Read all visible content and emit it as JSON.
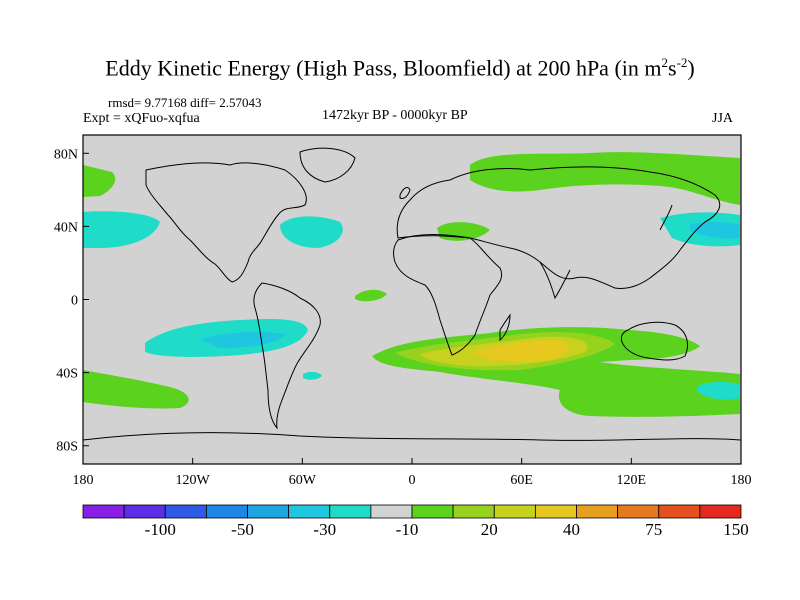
{
  "title": {
    "main": "Eddy Kinetic Energy (High Pass, Bloomfield) at 200 hPa (in m",
    "sup1": "2",
    "mid": "s",
    "sup2": "-2",
    "close": ")"
  },
  "stats": {
    "rmsd_diff": "rmsd= 9.77168 diff= 2.57043",
    "experiment": "Expt = xQFuo-xqfua",
    "period": "1472kyr BP - 0000kyr BP",
    "season": "JJA"
  },
  "axes": {
    "lat_ticks": [
      {
        "value": 80,
        "label": "80N"
      },
      {
        "value": 40,
        "label": "40N"
      },
      {
        "value": 0,
        "label": "0"
      },
      {
        "value": -40,
        "label": "40S"
      },
      {
        "value": -80,
        "label": "80S"
      }
    ],
    "lon_ticks": [
      {
        "value": -180,
        "label": "180"
      },
      {
        "value": -120,
        "label": "120W"
      },
      {
        "value": -60,
        "label": "60W"
      },
      {
        "value": 0,
        "label": "0"
      },
      {
        "value": 60,
        "label": "60E"
      },
      {
        "value": 120,
        "label": "120E"
      },
      {
        "value": 180,
        "label": "180"
      }
    ],
    "lon_range": [
      -180,
      180
    ],
    "lat_range": [
      -90,
      90
    ]
  },
  "colorbar": {
    "colors": [
      "#8a1ee6",
      "#5a2ee6",
      "#2e5ae6",
      "#1e86e6",
      "#1ea6e0",
      "#1ec6e0",
      "#1edcc8",
      "#d2d2d2",
      "#5ad21e",
      "#96d21e",
      "#c8d21e",
      "#e6c81e",
      "#e6a01e",
      "#e6781e",
      "#e6501e",
      "#e6281e"
    ],
    "labels": [
      {
        "boundary": 2,
        "text": "-100"
      },
      {
        "boundary": 4,
        "text": "-50"
      },
      {
        "boundary": 6,
        "text": "-30"
      },
      {
        "boundary": 8,
        "text": "-10"
      },
      {
        "boundary": 10,
        "text": "20"
      },
      {
        "boundary": 12,
        "text": "40"
      },
      {
        "boundary": 14,
        "text": "75"
      },
      {
        "boundary": 16,
        "text": "150"
      }
    ]
  }
}
